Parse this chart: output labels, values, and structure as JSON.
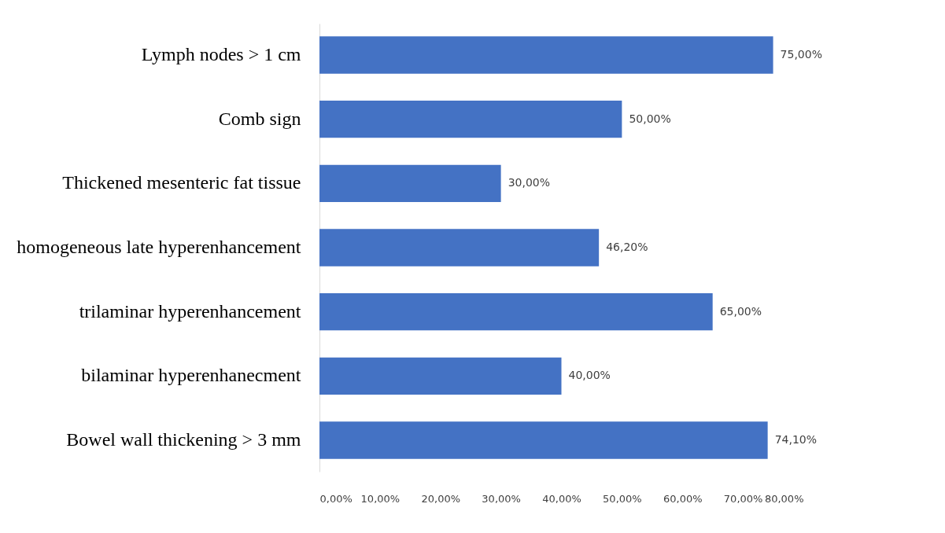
{
  "chart_data": {
    "type": "bar",
    "orientation": "horizontal",
    "categories": [
      "Lymph nodes > 1 cm",
      "Comb sign",
      "Thickened mesenteric fat tissue",
      "homogeneous late hyperenhancement",
      "trilaminar hyperenhancement",
      "bilaminar hyperenhanecment",
      "Bowel wall thickening > 3 mm"
    ],
    "values": [
      75,
      50,
      30,
      46.2,
      65,
      40,
      74.1
    ],
    "value_labels": [
      "75,00%",
      "50,00%",
      "30,00%",
      "46,20%",
      "65,00%",
      "40,00%",
      "74,10%"
    ],
    "color": "#4472c4",
    "xlim": [
      0,
      80
    ],
    "xticks": [
      {
        "value": 0,
        "label": "0,00%"
      },
      {
        "value": 10,
        "label": "10,00%"
      },
      {
        "value": 20,
        "label": "20,00%"
      },
      {
        "value": 30,
        "label": "30,00%"
      },
      {
        "value": 40,
        "label": "40,00%"
      },
      {
        "value": 50,
        "label": "50,00%"
      },
      {
        "value": 60,
        "label": "60,00%"
      },
      {
        "value": 70,
        "label": "70,00%"
      },
      {
        "value": 80,
        "label": "80,00%"
      }
    ],
    "grid": false
  }
}
